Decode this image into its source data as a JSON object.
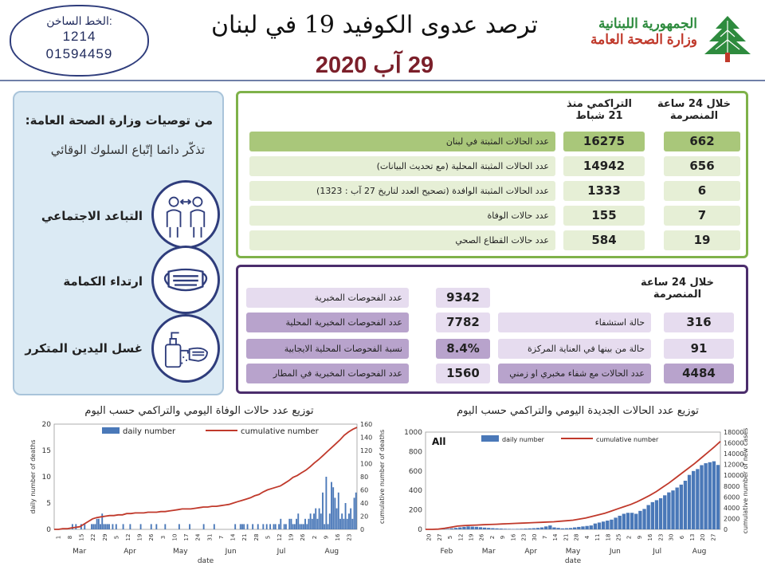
{
  "header": {
    "hotline_label": "الخط الساخن:",
    "hotline_1": "1214",
    "hotline_2": "01594459",
    "title": "ترصد عدوى الكوفيد 19 في لبنان",
    "date": "29 آب 2020",
    "ministry_line1": "الجمهورية اللبنانية",
    "ministry_line2": "وزارة الصحة العامة",
    "logo_icon": "cedar-tree-icon"
  },
  "recommendations": {
    "title": "من توصيات وزارة الصحة العامة:",
    "subtitle": "تذكّر دائما إتّباع السلوك الوقائي",
    "items": [
      {
        "label": "التباعد الاجتماعي",
        "icon": "social-distancing-icon"
      },
      {
        "label": "ارتداء الكمامة",
        "icon": "face-mask-icon"
      },
      {
        "label": "غسل اليدين المتكرر",
        "icon": "hand-washing-icon"
      }
    ]
  },
  "cases": {
    "header_24h": "خلال 24 ساعة المنصرمة",
    "header_cumulative": "التراكمي منذ 21 شباط",
    "rows": [
      {
        "label": "عدد الحالات المثبتة في لبنان",
        "cumulative": "16275",
        "daily": "662"
      },
      {
        "label": "عدد الحالات المثبتة المحلية  (مع تحديث البيانات)",
        "cumulative": "14942",
        "daily": "656"
      },
      {
        "label": "عدد الحالات المثبتة الوافدة (تصحيح العدد لتاريخ 27 آب : 1323)",
        "cumulative": "1333",
        "daily": "6"
      },
      {
        "label": "عدد حالات الوفاة",
        "cumulative": "155",
        "daily": "7"
      },
      {
        "label": "عدد حالات القطاع الصحي",
        "cumulative": "584",
        "daily": "19"
      }
    ],
    "colors": {
      "dark": "#a9c77a",
      "light": "#e6efd6"
    }
  },
  "last24": {
    "title": "خلال 24 ساعة المنصرمة",
    "left": [
      {
        "label": "عدد الفحوصات المخبرية",
        "value": "9342"
      },
      {
        "label": "عدد الفحوصات المخبرية  المحلية",
        "value": "7782"
      },
      {
        "label": "نسبة الفحوصات المحلية الايجابية",
        "value": "8.4%"
      },
      {
        "label": "عدد الفحوصات المخبرية في المطار",
        "value": "1560"
      }
    ],
    "right": [
      {
        "label": "حالة استشفاء",
        "value": "316"
      },
      {
        "label": "حالة من بينها في العناية المركزة",
        "value": "91"
      },
      {
        "label": "عدد الحالات مع شفاء مخبري او زمني",
        "value": "4484"
      }
    ],
    "colors": {
      "dark": "#b8a3cc",
      "light": "#e6dcef"
    }
  },
  "chart_data": [
    {
      "type": "bar",
      "title": "توزيع عدد حالات  الوفاة اليومي والتراكمي حسب اليوم",
      "xlabel": "date",
      "ylabel": "daily number of deaths",
      "y2label": "cumulative number of deaths",
      "ylim": [
        0,
        20
      ],
      "y2lim": [
        0,
        160
      ],
      "yticks": [
        "0",
        "5",
        "10",
        "15",
        "20"
      ],
      "y2ticks": [
        "0",
        "20",
        "40",
        "60",
        "80",
        "100",
        "120",
        "140",
        "160"
      ],
      "months": [
        "Mar",
        "Apr",
        "May",
        "Jun",
        "Jul",
        "Aug"
      ],
      "day_ticks": [
        "1",
        "8",
        "15",
        "22",
        "29",
        "5",
        "12",
        "19",
        "26",
        "3",
        "10",
        "17",
        "24",
        "31",
        "7",
        "14",
        "21",
        "28",
        "5",
        "12",
        "19",
        "26",
        "2",
        "9",
        "16",
        "23"
      ],
      "series": [
        {
          "name": "daily number",
          "type": "bar",
          "color": "#4a78b8",
          "values": [
            0,
            0,
            0,
            0,
            0,
            0,
            0,
            0,
            0,
            0,
            1,
            0,
            1,
            0,
            0,
            1,
            0,
            1,
            0,
            0,
            0,
            1,
            1,
            1,
            2,
            2,
            1,
            3,
            1,
            1,
            1,
            1,
            0,
            1,
            0,
            1,
            0,
            0,
            0,
            1,
            0,
            0,
            0,
            1,
            0,
            0,
            0,
            0,
            0,
            1,
            0,
            0,
            0,
            0,
            0,
            1,
            0,
            0,
            1,
            0,
            0,
            0,
            0,
            1,
            0,
            0,
            0,
            0,
            0,
            0,
            0,
            1,
            0,
            0,
            0,
            0,
            0,
            1,
            0,
            0,
            0,
            0,
            0,
            0,
            0,
            1,
            0,
            0,
            0,
            0,
            0,
            1,
            0,
            0,
            0,
            0,
            0,
            0,
            0,
            0,
            0,
            0,
            0,
            1,
            0,
            0,
            1,
            1,
            1,
            0,
            1,
            0,
            0,
            1,
            0,
            0,
            1,
            0,
            0,
            1,
            0,
            1,
            0,
            1,
            0,
            1,
            1,
            0,
            1,
            2,
            0,
            1,
            1,
            0,
            2,
            2,
            1,
            1,
            2,
            3,
            1,
            1,
            1,
            2,
            1,
            2,
            3,
            2,
            3,
            4,
            2,
            4,
            3,
            7,
            1,
            10,
            1,
            3,
            9,
            8,
            6,
            4,
            7,
            2,
            3,
            2,
            5,
            2,
            3,
            4,
            2,
            6,
            7
          ]
        },
        {
          "name": "cumulative number",
          "type": "line",
          "color": "#c0392b",
          "values": [
            0,
            0,
            1,
            1,
            2,
            3,
            4,
            8,
            12,
            16,
            18,
            19,
            20,
            21,
            21,
            22,
            22,
            24,
            24,
            25,
            25,
            25,
            26,
            26,
            26,
            27,
            27,
            28,
            29,
            30,
            31,
            31,
            31,
            32,
            33,
            34,
            34,
            35,
            35,
            36,
            37,
            38,
            40,
            42,
            44,
            46,
            48,
            51,
            53,
            57,
            60,
            62,
            64,
            66,
            70,
            74,
            79,
            82,
            86,
            90,
            95,
            101,
            106,
            112,
            118,
            124,
            130,
            136,
            143,
            148,
            152,
            155
          ]
        }
      ]
    },
    {
      "type": "bar",
      "title": "توزيع عدد الحالات الجديدة اليومي والتراكمي حسب اليوم",
      "annotation": "All",
      "xlabel": "date",
      "ylabel": "",
      "y2label": "cumulative number of new cases",
      "ylim": [
        0,
        1000
      ],
      "y2lim": [
        0,
        18000
      ],
      "yticks": [
        "0",
        "200",
        "400",
        "600",
        "800",
        "1000"
      ],
      "y2ticks": [
        "0",
        "2000",
        "4000",
        "6000",
        "8000",
        "10000",
        "12000",
        "14000",
        "16000",
        "18000"
      ],
      "months": [
        "Feb",
        "Mar",
        "Apr",
        "May",
        "Jun",
        "Jul",
        "Aug"
      ],
      "day_ticks": [
        "20",
        "27",
        "5",
        "12",
        "19",
        "26",
        "2",
        "9",
        "16",
        "23",
        "30",
        "7",
        "14",
        "21",
        "28",
        "4",
        "11",
        "18",
        "25",
        "2",
        "9",
        "16",
        "23",
        "30",
        "6",
        "13",
        "20",
        "27"
      ],
      "series": [
        {
          "name": "daily number",
          "type": "bar",
          "color": "#4a78b8",
          "values": [
            0,
            0,
            1,
            2,
            3,
            5,
            10,
            15,
            20,
            25,
            30,
            28,
            26,
            22,
            18,
            15,
            12,
            10,
            8,
            6,
            5,
            4,
            5,
            6,
            8,
            10,
            12,
            15,
            20,
            30,
            40,
            20,
            15,
            10,
            12,
            14,
            20,
            25,
            30,
            35,
            40,
            60,
            70,
            80,
            90,
            100,
            120,
            140,
            160,
            170,
            170,
            160,
            190,
            210,
            250,
            280,
            300,
            320,
            350,
            380,
            400,
            430,
            460,
            500,
            560,
            600,
            620,
            660,
            680,
            690,
            700,
            662
          ]
        },
        {
          "name": "cumulative number",
          "type": "line",
          "color": "#c0392b",
          "values": [
            0,
            5,
            50,
            200,
            400,
            600,
            700,
            750,
            800,
            850,
            900,
            950,
            1000,
            1050,
            1100,
            1150,
            1200,
            1250,
            1300,
            1350,
            1400,
            1500,
            1600,
            1700,
            1900,
            2100,
            2400,
            2700,
            3000,
            3400,
            3800,
            4200,
            4600,
            5100,
            5700,
            6300,
            7000,
            7800,
            8600,
            9500,
            10400,
            11300,
            12200,
            13200,
            14200,
            15200,
            16275
          ]
        }
      ],
      "chart_type_hint": "bar"
    }
  ]
}
